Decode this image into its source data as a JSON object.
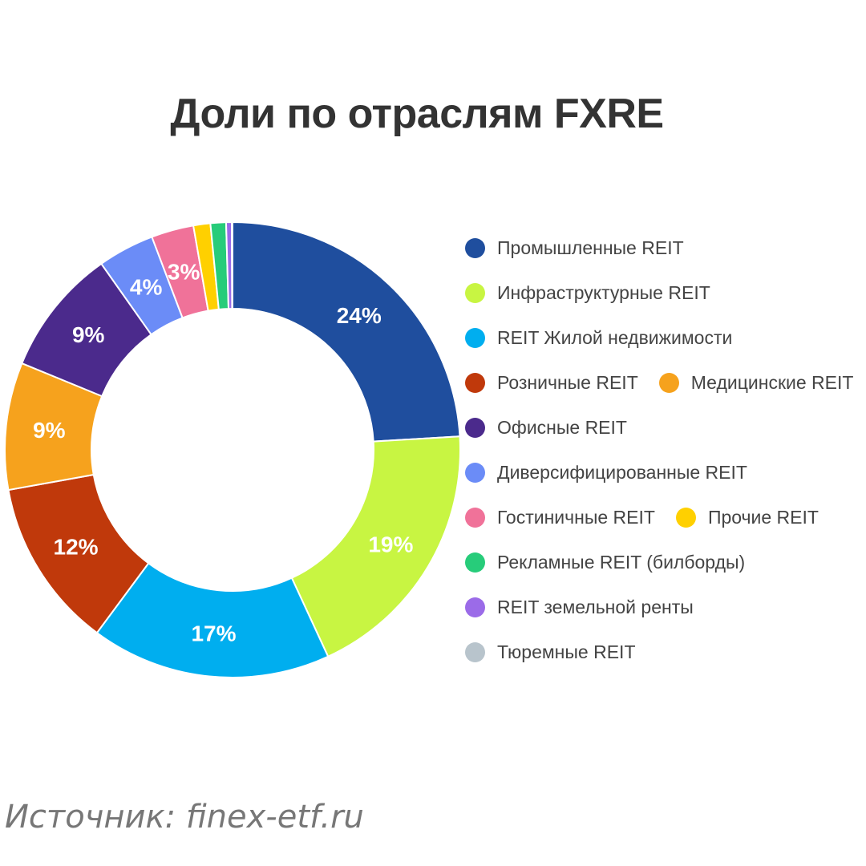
{
  "chart_data": {
    "type": "pie",
    "title": "Доли по отраслям FXRE",
    "donut": true,
    "legend_position": "right",
    "slices": [
      {
        "label": "Промышленные REIT",
        "value": 24,
        "value_label": "24%",
        "color": "#1f4e9e"
      },
      {
        "label": "Инфраструктурные REIT",
        "value": 19,
        "value_label": "19%",
        "color": "#c8f542"
      },
      {
        "label": "REIT Жилой недвижимости",
        "value": 17,
        "value_label": "17%",
        "color": "#00aeef"
      },
      {
        "label": "Розничные REIT",
        "value": 12,
        "value_label": "12%",
        "color": "#c0390b"
      },
      {
        "label": "Медицинские REIT",
        "value": 9,
        "value_label": "9%",
        "color": "#f6a21d"
      },
      {
        "label": "Офисные REIT",
        "value": 9,
        "value_label": "9%",
        "color": "#4b2a8c"
      },
      {
        "label": "Диверсифицированные REIT",
        "value": 4,
        "value_label": "4%",
        "color": "#6b8cf7"
      },
      {
        "label": "Гостиничные REIT",
        "value": 3,
        "value_label": "3%",
        "color": "#f07299"
      },
      {
        "label": "Прочие REIT",
        "value": 1.2,
        "value_label": "",
        "color": "#ffd000"
      },
      {
        "label": "Рекламные REIT (билборды)",
        "value": 1.1,
        "value_label": "",
        "color": "#27cc7a"
      },
      {
        "label": "REIT земельной ренты",
        "value": 0.4,
        "value_label": "",
        "color": "#9b6be8"
      },
      {
        "label": "Тюремные REIT",
        "value": 0.05,
        "value_label": "",
        "color": "#b8c4cc"
      }
    ]
  },
  "legend_rows": [
    [
      0
    ],
    [
      1
    ],
    [
      2
    ],
    [
      3,
      4
    ],
    [
      5
    ],
    [
      6
    ],
    [
      7,
      8
    ],
    [
      9
    ],
    [
      10
    ],
    [
      11
    ]
  ],
  "source": "Источник: finex-etf.ru"
}
